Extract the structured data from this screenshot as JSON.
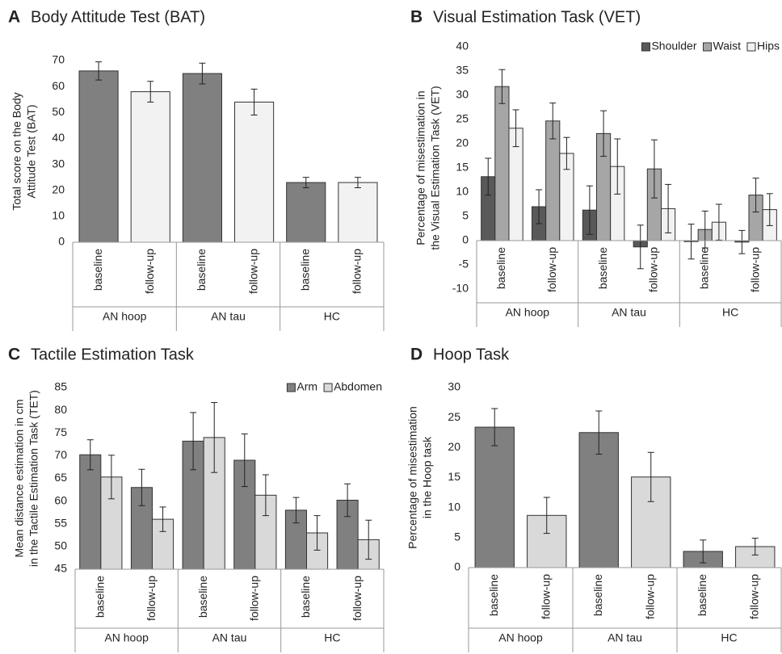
{
  "chart_data": [
    {
      "type": "bar",
      "panel_label": "A",
      "title": "Body Attitude Test (BAT)",
      "ylabel": [
        "Total score on the Body",
        "Attitude Test (BAT)"
      ],
      "categories": [
        "baseline",
        "follow-up",
        "baseline",
        "follow-up",
        "baseline",
        "follow-up"
      ],
      "groups": [
        "AN hoop",
        "AN tau",
        "HC"
      ],
      "values": [
        66,
        58,
        65,
        54,
        23,
        23
      ],
      "errors": [
        3.5,
        4,
        4,
        5,
        2,
        2
      ],
      "colors": [
        "#808080",
        "#f2f2f2",
        "#808080",
        "#f2f2f2",
        "#808080",
        "#f2f2f2"
      ],
      "ylim": [
        0,
        70
      ],
      "yticks": [
        0,
        10,
        20,
        30,
        40,
        50,
        60,
        70
      ]
    },
    {
      "type": "bar",
      "panel_label": "B",
      "title": "Visual Estimation Task (VET)",
      "ylabel": [
        "Percentage of misestimation in",
        "the Visual Estimation Task (VET)"
      ],
      "categories": [
        "baseline",
        "follow-up",
        "baseline",
        "follow-up",
        "baseline",
        "follow-up"
      ],
      "groups": [
        "AN hoop",
        "AN tau",
        "HC"
      ],
      "series": [
        {
          "name": "Shoulder",
          "color": "#595959",
          "values": [
            13.2,
            7,
            6.3,
            -1.3,
            -0.2,
            -0.3
          ],
          "errors": [
            3.8,
            3.5,
            5,
            4.5,
            3.6,
            2.4
          ]
        },
        {
          "name": "Waist",
          "color": "#a6a6a6",
          "values": [
            31.8,
            24.7,
            22.1,
            14.8,
            2.3,
            9.4
          ],
          "errors": [
            3.5,
            3.7,
            4.7,
            6,
            3.8,
            3.5
          ]
        },
        {
          "name": "Hips",
          "color": "#f2f2f2",
          "values": [
            23.2,
            18,
            15.3,
            6.6,
            3.8,
            6.4
          ],
          "errors": [
            3.8,
            3.3,
            5.7,
            5,
            3.7,
            3.3
          ]
        }
      ],
      "legend": "top-right",
      "ylim": [
        -10,
        40
      ],
      "yticks": [
        -10,
        -5,
        0,
        5,
        10,
        15,
        20,
        25,
        30,
        35,
        40
      ]
    },
    {
      "type": "bar",
      "panel_label": "C",
      "title": "Tactile Estimation Task",
      "ylabel": [
        "Mean distance estimation in cm",
        "in the Tactile Estimation Task (TET)"
      ],
      "categories": [
        "baseline",
        "follow-up",
        "baseline",
        "follow-up",
        "baseline",
        "follow-up"
      ],
      "groups": [
        "AN hoop",
        "AN tau",
        "HC"
      ],
      "series": [
        {
          "name": "Arm",
          "color": "#808080",
          "values": [
            70.2,
            63,
            73.2,
            69,
            58,
            60.2
          ],
          "errors": [
            3.3,
            4,
            6.3,
            5.8,
            2.8,
            3.6
          ]
        },
        {
          "name": "Abdomen",
          "color": "#d9d9d9",
          "values": [
            65.3,
            56,
            74,
            61.3,
            53,
            51.5
          ],
          "errors": [
            4.8,
            2.7,
            7.7,
            4.5,
            3.8,
            4.3
          ]
        }
      ],
      "legend": "top-right",
      "ylim": [
        45,
        85
      ],
      "yticks": [
        45,
        50,
        55,
        60,
        65,
        70,
        75,
        80,
        85
      ]
    },
    {
      "type": "bar",
      "panel_label": "D",
      "title": "Hoop Task",
      "ylabel": [
        "Percentage of  misestimation",
        "in the Hoop task"
      ],
      "categories": [
        "baseline",
        "follow-up",
        "baseline",
        "follow-up",
        "baseline",
        "follow-up"
      ],
      "groups": [
        "AN hoop",
        "AN tau",
        "HC"
      ],
      "values": [
        23.4,
        8.7,
        22.5,
        15.1,
        2.7,
        3.5
      ],
      "errors": [
        3.1,
        3,
        3.6,
        4.1,
        1.9,
        1.4
      ],
      "colors": [
        "#808080",
        "#d9d9d9",
        "#808080",
        "#d9d9d9",
        "#808080",
        "#d9d9d9"
      ],
      "ylim": [
        0,
        30
      ],
      "yticks": [
        0,
        5,
        10,
        15,
        20,
        25,
        30
      ]
    }
  ]
}
